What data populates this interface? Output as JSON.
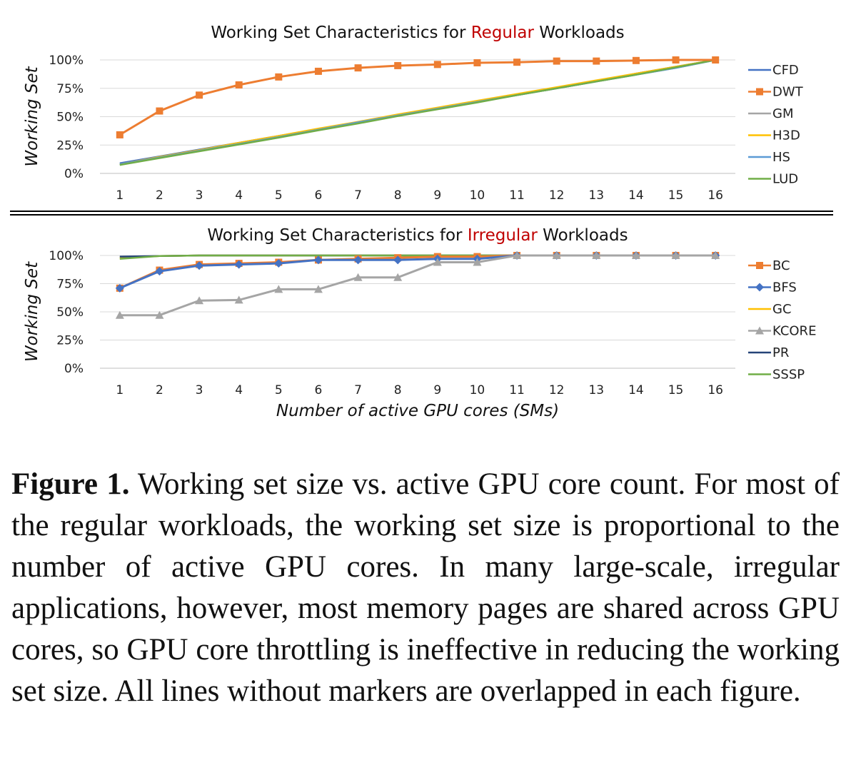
{
  "chart_data": [
    {
      "type": "line",
      "title_parts": [
        "Working Set Characteristics for ",
        "Regular",
        " Workloads"
      ],
      "title_highlight_color": "#c00000",
      "ylabel": "Working Set",
      "xlabel": "",
      "x": [
        1,
        2,
        3,
        4,
        5,
        6,
        7,
        8,
        9,
        10,
        11,
        12,
        13,
        14,
        15,
        16
      ],
      "ylim": [
        0,
        100
      ],
      "yticks": [
        "0%",
        "25%",
        "50%",
        "75%",
        "100%"
      ],
      "grid": true,
      "legend_position": "right",
      "series": [
        {
          "name": "CFD",
          "color": "#4472c4",
          "marker": "none",
          "values": [
            9,
            15,
            21,
            27,
            33,
            39,
            45,
            51,
            57,
            63,
            69,
            75,
            81,
            88,
            94,
            100
          ]
        },
        {
          "name": "DWT",
          "color": "#ed7d31",
          "marker": "square",
          "values": [
            34,
            55,
            69,
            78,
            85,
            90,
            93,
            95,
            96,
            97.5,
            98,
            99,
            99,
            99.5,
            100,
            100
          ]
        },
        {
          "name": "GM",
          "color": "#a5a5a5",
          "marker": "none",
          "values": [
            8,
            14,
            20,
            26,
            32,
            39,
            45,
            51,
            57,
            63,
            69,
            75,
            81,
            87,
            93,
            100
          ]
        },
        {
          "name": "H3D",
          "color": "#ffc000",
          "marker": "none",
          "values": [
            8,
            14.5,
            20.5,
            27,
            33,
            39.5,
            45.5,
            52,
            58,
            64,
            70,
            76,
            82,
            88,
            94,
            100
          ]
        },
        {
          "name": "HS",
          "color": "#5b9bd5",
          "marker": "none",
          "values": [
            8,
            14,
            20,
            26,
            32,
            38.5,
            45,
            51,
            57,
            63,
            69,
            75,
            81,
            87,
            93,
            100
          ]
        },
        {
          "name": "LUD",
          "color": "#70ad47",
          "marker": "none",
          "values": [
            7.5,
            13.5,
            19.5,
            25.5,
            31.5,
            38,
            44,
            50.5,
            56.5,
            62.5,
            69,
            75,
            81,
            87,
            93.5,
            100
          ]
        }
      ]
    },
    {
      "type": "line",
      "title_parts": [
        "Working Set Characteristics for ",
        "Irregular",
        " Workloads"
      ],
      "title_highlight_color": "#c00000",
      "ylabel": "Working Set",
      "xlabel": "Number of active GPU cores (SMs)",
      "x": [
        1,
        2,
        3,
        4,
        5,
        6,
        7,
        8,
        9,
        10,
        11,
        12,
        13,
        14,
        15,
        16
      ],
      "ylim": [
        0,
        100
      ],
      "yticks": [
        "0%",
        "25%",
        "50%",
        "75%",
        "100%"
      ],
      "grid": true,
      "legend_position": "right",
      "series": [
        {
          "name": "BC",
          "color": "#ed7d31",
          "marker": "square",
          "values": [
            71,
            87,
            92,
            93,
            94,
            96,
            97,
            98,
            99,
            99,
            100,
            100,
            100,
            100,
            100,
            100
          ]
        },
        {
          "name": "BFS",
          "color": "#4472c4",
          "marker": "diamond",
          "values": [
            71,
            86,
            91,
            92,
            93,
            96,
            96,
            96,
            97,
            97,
            100,
            100,
            100,
            100,
            100,
            100
          ]
        },
        {
          "name": "GC",
          "color": "#ffc000",
          "marker": "none",
          "values": [
            98,
            99.5,
            100,
            100,
            100,
            100,
            100,
            100,
            100,
            100,
            100,
            100,
            100,
            100,
            100,
            100
          ]
        },
        {
          "name": "KCORE",
          "color": "#a5a5a5",
          "marker": "triangle",
          "values": [
            47,
            47,
            60,
            60.5,
            70,
            70,
            80.5,
            80.5,
            94,
            94,
            100,
            100,
            100,
            100,
            100,
            100
          ]
        },
        {
          "name": "PR",
          "color": "#264478",
          "marker": "none",
          "values": [
            99,
            99.5,
            100,
            100,
            100,
            100,
            100,
            100,
            100,
            100,
            100,
            100,
            100,
            100,
            100,
            100
          ]
        },
        {
          "name": "SSSP",
          "color": "#70ad47",
          "marker": "none",
          "values": [
            97,
            99.5,
            100,
            100,
            100,
            100,
            100,
            100,
            100,
            100,
            100,
            100,
            100,
            100,
            100,
            100
          ]
        }
      ]
    }
  ],
  "caption": {
    "label": "Figure 1.",
    "text": "Working set size vs. active GPU core count. For most of the regular workloads, the working set size is proportional to the number of active GPU cores. In many large-scale, irregular applications, however, most memory pages are shared across GPU cores, so GPU core throttling is ineffective in reducing the working set size. All lines without markers are overlapped in each figure."
  }
}
